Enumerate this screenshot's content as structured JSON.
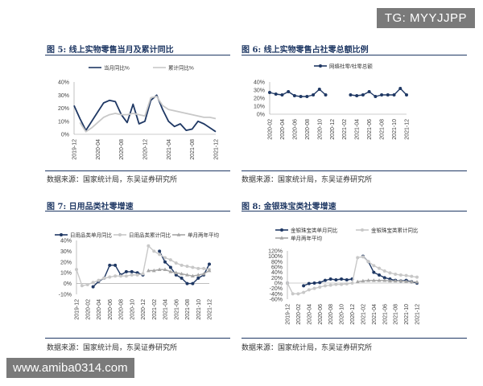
{
  "watermarks": {
    "tg": "TG: MYYJJPP",
    "url": "www.amiba0314.com"
  },
  "colors": {
    "dark": "#1f3864",
    "light": "#c8c8c8",
    "mid": "#a6a6a6"
  },
  "chart_data": [
    {
      "id": "fig5",
      "type": "line",
      "title": "图 5: 线上实物零售当月及累计同比",
      "source": "数据来源：国家统计局，东吴证券研究所",
      "ylim": [
        0,
        40
      ],
      "yticks": [
        "0%",
        "10%",
        "20%",
        "30%",
        "40%"
      ],
      "ytick_values": [
        0,
        10,
        20,
        30,
        40
      ],
      "xticks": [
        "2019-12",
        "2020-04",
        "2020-08",
        "2020-12",
        "2021-04",
        "2021-08",
        "2021-12"
      ],
      "series": [
        {
          "name": "当月同比%",
          "color": "#1f3864",
          "markers": false,
          "values": [
            22,
            12,
            3,
            10,
            17,
            24,
            26,
            25,
            15,
            9,
            23,
            8,
            10,
            26,
            30,
            19,
            10,
            6,
            8,
            3,
            4,
            10,
            8,
            5,
            2
          ]
        },
        {
          "name": "累计同比%",
          "color": "#c8c8c8",
          "markers": false,
          "values": [
            null,
            9,
            2,
            5,
            9,
            13,
            15,
            16,
            15,
            15,
            16,
            15,
            14,
            28,
            29,
            22,
            19,
            18,
            17,
            16,
            15,
            14,
            13,
            13,
            12
          ]
        }
      ]
    },
    {
      "id": "fig6",
      "type": "line",
      "title": "图 6: 线上实物零售占社零总额比例",
      "source": "数据来源：国家统计局，东吴证券研究所",
      "ylim": [
        0,
        40
      ],
      "yticks": [
        "0%",
        "10%",
        "20%",
        "30%",
        "40%"
      ],
      "ytick_values": [
        0,
        10,
        20,
        30,
        40
      ],
      "xticks": [
        "2020-02",
        "2020-04",
        "2020-06",
        "2020-08",
        "2020-10",
        "2020-12",
        "2021-02",
        "2021-04",
        "2021-06",
        "2021-08",
        "2021-10",
        "2021-12"
      ],
      "series": [
        {
          "name": "网络社零/社零总额",
          "color": "#1f3864",
          "markers": true,
          "values": [
            27,
            25,
            24,
            28,
            23,
            22,
            22,
            24,
            31,
            24,
            null,
            null,
            null,
            24,
            23,
            24,
            28,
            22,
            24,
            24,
            24,
            32,
            24
          ]
        }
      ]
    },
    {
      "id": "fig7",
      "type": "line",
      "title": "图 7: 日用品类社零增速",
      "source": "数据来源：国家统计局，东吴证券研究所",
      "ylim": [
        -10,
        40
      ],
      "yticks": [
        "-10%",
        "0%",
        "10%",
        "20%",
        "30%",
        "40%"
      ],
      "ytick_values": [
        -10,
        0,
        10,
        20,
        30,
        40
      ],
      "xticks": [
        "2019-12",
        "2020-02",
        "2020-04",
        "2020-06",
        "2020-08",
        "2020-10",
        "2020-12",
        "2021-02",
        "2021-04",
        "2021-06",
        "2021-08",
        "2021-10",
        "2021-12"
      ],
      "series": [
        {
          "name": "日用品类单月同比",
          "color": "#1f3864",
          "markers": true,
          "values": [
            null,
            null,
            null,
            -3,
            2,
            5,
            17,
            17,
            8,
            11,
            11,
            10,
            8,
            null,
            null,
            30,
            20,
            15,
            8,
            5,
            0,
            0,
            5,
            8,
            18
          ]
        },
        {
          "name": "日用品类累计同比",
          "color": "#c8c8c8",
          "markers": true,
          "values": [
            13,
            -2,
            -1,
            1,
            3,
            5,
            6,
            7,
            7,
            7,
            8,
            8,
            9,
            35,
            30,
            27,
            24,
            22,
            19,
            17,
            16,
            15,
            14,
            14,
            13
          ]
        },
        {
          "name": "单月两年平均",
          "color": "#a6a6a6",
          "markers": true,
          "marker": "triangle",
          "values": [
            null,
            null,
            null,
            null,
            null,
            null,
            null,
            null,
            null,
            null,
            null,
            null,
            null,
            12,
            12,
            13,
            13,
            11,
            10,
            9,
            8,
            7,
            8,
            9,
            12
          ]
        }
      ]
    },
    {
      "id": "fig8",
      "type": "line",
      "title": "图 8: 金银珠宝类社零增速",
      "source": "数据来源：国家统计局，东吴证券研究所",
      "ylim": [
        -60,
        120
      ],
      "yticks": [
        "-60%",
        "-40%",
        "-20%",
        "0%",
        "20%",
        "40%",
        "60%",
        "80%",
        "100%",
        "120%"
      ],
      "ytick_values": [
        -60,
        -40,
        -20,
        0,
        20,
        40,
        60,
        80,
        100,
        120
      ],
      "xticks": [
        "2019-12",
        "2020-02",
        "2020-04",
        "2020-06",
        "2020-08",
        "2020-10",
        "2020-12",
        "2021-02",
        "2021-04",
        "2021-06",
        "2021-08",
        "2021-10",
        "2021-12"
      ],
      "series": [
        {
          "name": "金银珠宝类单月同比",
          "color": "#1f3864",
          "markers": true,
          "values": [
            0,
            null,
            null,
            -10,
            -2,
            0,
            2,
            10,
            15,
            12,
            15,
            12,
            15,
            null,
            100,
            80,
            40,
            30,
            20,
            15,
            10,
            8,
            10,
            5,
            0
          ]
        },
        {
          "name": "金银珠宝类累计同比",
          "color": "#c8c8c8",
          "markers": true,
          "values": [
            0,
            -40,
            -40,
            -35,
            -25,
            -20,
            -15,
            -10,
            -8,
            -5,
            -5,
            -3,
            0,
            95,
            98,
            80,
            65,
            55,
            45,
            38,
            33,
            30,
            28,
            25,
            22
          ]
        },
        {
          "name": "单月两年平均",
          "color": "#a6a6a6",
          "markers": true,
          "marker": "triangle",
          "values": [
            null,
            null,
            null,
            null,
            null,
            null,
            null,
            null,
            null,
            null,
            null,
            null,
            null,
            5,
            8,
            10,
            10,
            10,
            10,
            8,
            8,
            8,
            6,
            5,
            4
          ]
        }
      ]
    }
  ]
}
